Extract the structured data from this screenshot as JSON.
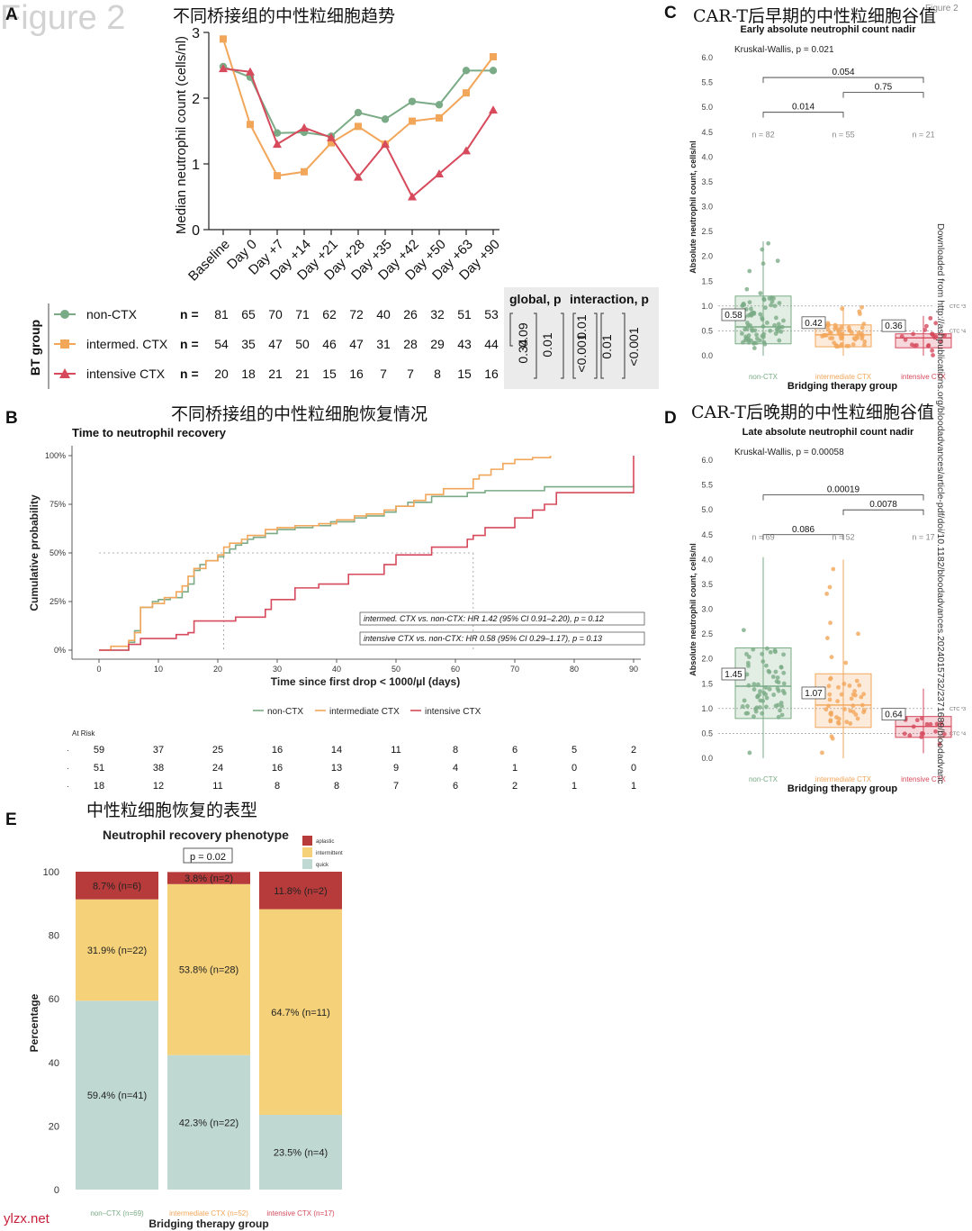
{
  "figure_label": "Figure 2",
  "corner_label": "Figure 2",
  "watermark": "ylzx.net",
  "download_note": "Downloaded from http://ashpublications.org/bloodadvances/article-pdf/doi/10.1182/bloodadvances.2024015732/2371689/bloodadvanc",
  "colors": {
    "non": "#7bab86",
    "int": "#f2a65a",
    "icx": "#d64a5c",
    "aplastic": "#b83b3b",
    "intermittent": "#f5d27a",
    "quick": "#bfd8d2"
  },
  "chart_data": [
    {
      "panel": "A",
      "type": "line",
      "title": "不同桥接组的中性粒细胞趋势",
      "ylabel": "Median neutrophil count (cells/nl)",
      "ylim": [
        0,
        3
      ],
      "yticks": [
        "0",
        "1",
        "2",
        "3"
      ],
      "categories": [
        "Baseline",
        "Day 0",
        "Day +7",
        "Day +14",
        "Day +21",
        "Day +28",
        "Day +35",
        "Day +42",
        "Day +50",
        "Day +63",
        "Day +90"
      ],
      "series": [
        {
          "name": "non-CTX",
          "values": [
            2.48,
            2.32,
            1.47,
            1.48,
            1.42,
            1.78,
            1.68,
            1.95,
            1.9,
            2.42,
            2.42
          ]
        },
        {
          "name": "intermed. CTX",
          "values": [
            2.9,
            1.6,
            0.82,
            0.88,
            1.32,
            1.57,
            1.3,
            1.65,
            1.7,
            2.08,
            2.63
          ]
        },
        {
          "name": "intensive CTX",
          "values": [
            2.45,
            2.4,
            1.3,
            1.55,
            1.4,
            0.8,
            1.3,
            0.5,
            0.85,
            1.2,
            1.82
          ]
        }
      ],
      "table": {
        "group_label": "BT group",
        "n_label": "n =",
        "rows": [
          {
            "name": "non-CTX",
            "n": [
              "81",
              "65",
              "70",
              "71",
              "62",
              "72",
              "40",
              "26",
              "32",
              "51",
              "53"
            ]
          },
          {
            "name": "intermed. CTX",
            "n": [
              "54",
              "35",
              "47",
              "50",
              "46",
              "47",
              "31",
              "28",
              "29",
              "43",
              "44"
            ]
          },
          {
            "name": "intensive CTX",
            "n": [
              "20",
              "18",
              "21",
              "21",
              "15",
              "16",
              "7",
              "7",
              "8",
              "15",
              "16"
            ]
          }
        ],
        "pbox": {
          "global_label": "global, p",
          "interaction_label": "interaction, p",
          "values": [
            "0.34",
            "0.09",
            "0.01",
            "<0.001",
            "0.01",
            "0.01",
            "<0.001"
          ]
        }
      }
    },
    {
      "panel": "B",
      "type": "line",
      "title": "不同桥接组的中性粒细胞恢复情况",
      "subtitle": "Time to neutrophil recovery",
      "xlabel": "Time since first drop < 1000/µl (days)",
      "ylabel": "Cumulative probability",
      "xlim": [
        0,
        90
      ],
      "ylim": [
        0,
        1
      ],
      "xticks": [
        "0",
        "10",
        "20",
        "30",
        "40",
        "50",
        "60",
        "70",
        "80",
        "90"
      ],
      "yticks": [
        "0%",
        "25%",
        "50%",
        "75%",
        "100%"
      ],
      "series": [
        {
          "name": "non-CTX",
          "x": [
            0,
            5,
            6,
            7,
            9,
            10,
            12,
            14,
            15,
            16,
            17,
            18,
            20,
            21,
            22,
            23,
            24,
            25,
            26,
            28,
            30,
            33,
            36,
            39,
            43,
            45,
            48,
            50,
            52,
            56,
            62,
            65,
            68,
            75,
            90
          ],
          "values": [
            0,
            0.04,
            0.1,
            0.22,
            0.25,
            0.26,
            0.27,
            0.3,
            0.34,
            0.41,
            0.44,
            0.46,
            0.48,
            0.5,
            0.52,
            0.54,
            0.55,
            0.57,
            0.58,
            0.6,
            0.62,
            0.63,
            0.64,
            0.66,
            0.68,
            0.69,
            0.71,
            0.74,
            0.76,
            0.79,
            0.81,
            0.82,
            0.82,
            0.84,
            0.85
          ]
        },
        {
          "name": "intermediate CTX",
          "x": [
            0,
            2,
            5,
            6,
            7,
            9,
            11,
            13,
            14,
            15,
            16,
            18,
            20,
            21,
            22,
            24,
            25,
            28,
            30,
            33,
            37,
            40,
            43,
            45,
            48,
            50,
            53,
            55,
            58,
            63,
            64,
            66,
            68,
            70,
            73,
            76
          ],
          "values": [
            0,
            0.02,
            0.05,
            0.09,
            0.22,
            0.24,
            0.27,
            0.3,
            0.33,
            0.38,
            0.42,
            0.46,
            0.49,
            0.53,
            0.55,
            0.57,
            0.59,
            0.62,
            0.63,
            0.64,
            0.65,
            0.67,
            0.69,
            0.7,
            0.72,
            0.74,
            0.77,
            0.8,
            0.83,
            0.88,
            0.9,
            0.93,
            0.96,
            0.98,
            0.99,
            1.0
          ]
        },
        {
          "name": "intensive CTX",
          "x": [
            0,
            5,
            7,
            13,
            15,
            16,
            23,
            28,
            29,
            33,
            37,
            42,
            48,
            50,
            56,
            62,
            63,
            65,
            70,
            73,
            75,
            77,
            90
          ],
          "values": [
            0,
            0.03,
            0.06,
            0.08,
            0.09,
            0.15,
            0.17,
            0.21,
            0.26,
            0.32,
            0.34,
            0.39,
            0.44,
            0.49,
            0.53,
            0.57,
            0.59,
            0.63,
            0.68,
            0.72,
            0.75,
            0.81,
            1.0
          ]
        }
      ],
      "annotations": [
        "intermed. CTX vs. non-CTX: HR 1.42 (95% CI 0.91–2.20), p = 0.12",
        "intensive CTX vs. non-CTX: HR 0.58 (95% CI 0.29–1.17), p = 0.13"
      ],
      "median_lines": [
        21,
        63
      ],
      "at_risk": {
        "label": "At Risk",
        "rows": [
          [
            "59",
            "37",
            "25",
            "16",
            "14",
            "11",
            "8",
            "6",
            "5",
            "2"
          ],
          [
            "51",
            "38",
            "24",
            "16",
            "13",
            "9",
            "4",
            "1",
            "0",
            "0"
          ],
          [
            "18",
            "12",
            "11",
            "8",
            "8",
            "7",
            "6",
            "2",
            "1",
            "1"
          ]
        ]
      }
    },
    {
      "panel": "C",
      "type": "scatter",
      "title": "CAR-T后早期的中性粒细胞谷值",
      "subtitle": "Early absolute neutrophil count nadir",
      "test": "Kruskal-Wallis, p = 0.021",
      "xlabel": "Bridging therapy group",
      "ylabel": "Absolute neutrophil count, cells/nl",
      "ylim": [
        0,
        6
      ],
      "yticks": [
        "0.0",
        "0.5",
        "1.0",
        "1.5",
        "2.0",
        "2.5",
        "3.0",
        "3.5",
        "4.0",
        "4.5",
        "5.0",
        "5.5",
        "6.0"
      ],
      "categories": [
        "non-CTX",
        "intermediate CTX",
        "intensive CTX"
      ],
      "n_labels": [
        "n = 82",
        "n = 55",
        "n = 21"
      ],
      "medians": [
        "0.58",
        "0.42",
        "0.36"
      ],
      "boxes": [
        {
          "q1": 0.24,
          "med": 0.58,
          "q3": 1.2,
          "lo": 0.0,
          "hi": 2.3
        },
        {
          "q1": 0.18,
          "med": 0.42,
          "q3": 0.62,
          "lo": 0.0,
          "hi": 1.0
        },
        {
          "q1": 0.16,
          "med": 0.36,
          "q3": 0.44,
          "lo": 0.0,
          "hi": 0.8
        }
      ],
      "brackets": [
        {
          "from": 0,
          "to": 2,
          "label": "0.054",
          "y": 5.6
        },
        {
          "from": 1,
          "to": 2,
          "label": "0.75",
          "y": 5.3
        },
        {
          "from": 0,
          "to": 1,
          "label": "0.014",
          "y": 4.9
        }
      ],
      "refs": [
        "CTC °3",
        "CTC °4"
      ],
      "ref_values": [
        1.0,
        0.5
      ]
    },
    {
      "panel": "D",
      "type": "scatter",
      "title": "CAR-T后晚期的中性粒细胞谷值",
      "subtitle": "Late absolute neutrophil count nadir",
      "test": "Kruskal-Wallis, p = 0.00058",
      "xlabel": "Bridging therapy group",
      "ylabel": "Absolute neutrophil count, cells/nl",
      "ylim": [
        0,
        6
      ],
      "yticks": [
        "0.0",
        "0.5",
        "1.0",
        "1.5",
        "2.0",
        "2.5",
        "3.0",
        "3.5",
        "4.0",
        "4.5",
        "5.0",
        "5.5",
        "6.0"
      ],
      "categories": [
        "non-CTX",
        "intermediate CTX",
        "intensive CTX"
      ],
      "n_labels": [
        "n = 69",
        "n = 52",
        "n = 17"
      ],
      "medians": [
        "1.45",
        "1.07",
        "0.64"
      ],
      "boxes": [
        {
          "q1": 0.8,
          "med": 1.45,
          "q3": 2.22,
          "lo": 0.0,
          "hi": 4.05
        },
        {
          "q1": 0.62,
          "med": 1.07,
          "q3": 1.7,
          "lo": 0.0,
          "hi": 4.0
        },
        {
          "q1": 0.42,
          "med": 0.64,
          "q3": 0.84,
          "lo": 0.1,
          "hi": 1.4
        }
      ],
      "brackets": [
        {
          "from": 0,
          "to": 2,
          "label": "0.00019",
          "y": 5.3
        },
        {
          "from": 1,
          "to": 2,
          "label": "0.0078",
          "y": 5.0
        },
        {
          "from": 0,
          "to": 1,
          "label": "0.086",
          "y": 4.5
        }
      ],
      "refs": [
        "CTC °3",
        "CTC °4"
      ],
      "ref_values": [
        1.0,
        0.5
      ]
    },
    {
      "panel": "E",
      "type": "bar",
      "title": "中性粒细胞恢复的表型",
      "subtitle": "Neutrophil recovery phenotype",
      "test": "p = 0.02",
      "xlabel": "Bridging therapy group",
      "ylabel": "Percentage",
      "ylim": [
        0,
        100
      ],
      "yticks": [
        "0",
        "20",
        "40",
        "60",
        "80",
        "100"
      ],
      "categories": [
        "non–CTX (n=69)",
        "intermediate CTX (n=52)",
        "intensive CTX (n=17)"
      ],
      "legend": [
        "aplastic",
        "intermittent",
        "quick"
      ],
      "series": [
        {
          "name": "quick",
          "values": [
            59.4,
            42.3,
            23.5
          ],
          "labels": [
            "59.4% (n=41)",
            "42.3% (n=22)",
            "23.5% (n=4)"
          ]
        },
        {
          "name": "intermittent",
          "values": [
            31.9,
            53.8,
            64.7
          ],
          "labels": [
            "31.9% (n=22)",
            "53.8% (n=28)",
            "64.7% (n=11)"
          ]
        },
        {
          "name": "aplastic",
          "values": [
            8.7,
            3.8,
            11.8
          ],
          "labels": [
            "8.7% (n=6)",
            "3.8% (n=2)",
            "11.8% (n=2)"
          ]
        }
      ]
    }
  ]
}
